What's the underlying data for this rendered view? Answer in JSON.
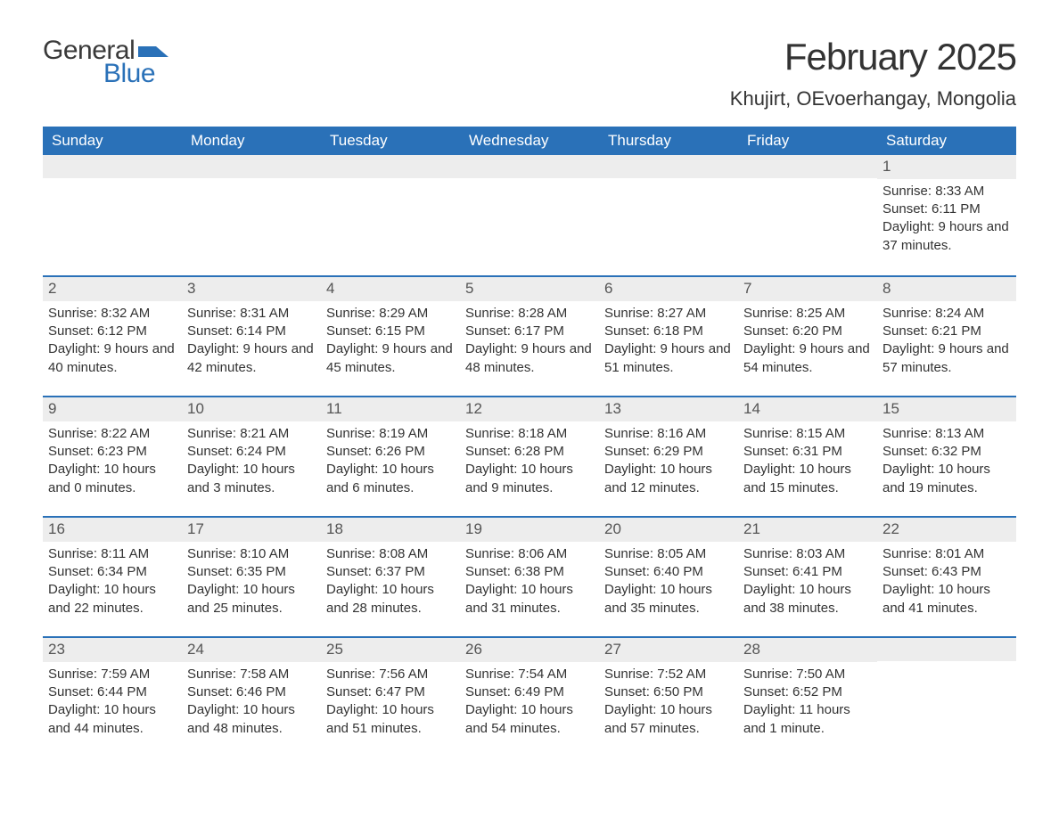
{
  "logo": {
    "wordA": "General",
    "wordB": "Blue"
  },
  "title": "February 2025",
  "location": "Khujirt, OEvoerhangay, Mongolia",
  "colors": {
    "header_bg": "#2a71b8",
    "header_fg": "#ffffff",
    "daynum_bg": "#ededed",
    "week_border": "#2a71b8",
    "page_bg": "#ffffff",
    "text": "#333333",
    "logo_dark": "#3a3a3a",
    "logo_blue": "#2a71b8"
  },
  "typography": {
    "title_fontsize": 42,
    "location_fontsize": 22,
    "weekday_fontsize": 17,
    "daynum_fontsize": 17,
    "body_fontsize": 15,
    "logo_fontsize": 30
  },
  "weekdays": [
    "Sunday",
    "Monday",
    "Tuesday",
    "Wednesday",
    "Thursday",
    "Friday",
    "Saturday"
  ],
  "labels": {
    "sunrise": "Sunrise: ",
    "sunset": "Sunset: ",
    "daylight": "Daylight: "
  },
  "weeks": [
    [
      null,
      null,
      null,
      null,
      null,
      null,
      {
        "day": "1",
        "sunrise": "8:33 AM",
        "sunset": "6:11 PM",
        "daylight": "9 hours and 37 minutes."
      }
    ],
    [
      {
        "day": "2",
        "sunrise": "8:32 AM",
        "sunset": "6:12 PM",
        "daylight": "9 hours and 40 minutes."
      },
      {
        "day": "3",
        "sunrise": "8:31 AM",
        "sunset": "6:14 PM",
        "daylight": "9 hours and 42 minutes."
      },
      {
        "day": "4",
        "sunrise": "8:29 AM",
        "sunset": "6:15 PM",
        "daylight": "9 hours and 45 minutes."
      },
      {
        "day": "5",
        "sunrise": "8:28 AM",
        "sunset": "6:17 PM",
        "daylight": "9 hours and 48 minutes."
      },
      {
        "day": "6",
        "sunrise": "8:27 AM",
        "sunset": "6:18 PM",
        "daylight": "9 hours and 51 minutes."
      },
      {
        "day": "7",
        "sunrise": "8:25 AM",
        "sunset": "6:20 PM",
        "daylight": "9 hours and 54 minutes."
      },
      {
        "day": "8",
        "sunrise": "8:24 AM",
        "sunset": "6:21 PM",
        "daylight": "9 hours and 57 minutes."
      }
    ],
    [
      {
        "day": "9",
        "sunrise": "8:22 AM",
        "sunset": "6:23 PM",
        "daylight": "10 hours and 0 minutes."
      },
      {
        "day": "10",
        "sunrise": "8:21 AM",
        "sunset": "6:24 PM",
        "daylight": "10 hours and 3 minutes."
      },
      {
        "day": "11",
        "sunrise": "8:19 AM",
        "sunset": "6:26 PM",
        "daylight": "10 hours and 6 minutes."
      },
      {
        "day": "12",
        "sunrise": "8:18 AM",
        "sunset": "6:28 PM",
        "daylight": "10 hours and 9 minutes."
      },
      {
        "day": "13",
        "sunrise": "8:16 AM",
        "sunset": "6:29 PM",
        "daylight": "10 hours and 12 minutes."
      },
      {
        "day": "14",
        "sunrise": "8:15 AM",
        "sunset": "6:31 PM",
        "daylight": "10 hours and 15 minutes."
      },
      {
        "day": "15",
        "sunrise": "8:13 AM",
        "sunset": "6:32 PM",
        "daylight": "10 hours and 19 minutes."
      }
    ],
    [
      {
        "day": "16",
        "sunrise": "8:11 AM",
        "sunset": "6:34 PM",
        "daylight": "10 hours and 22 minutes."
      },
      {
        "day": "17",
        "sunrise": "8:10 AM",
        "sunset": "6:35 PM",
        "daylight": "10 hours and 25 minutes."
      },
      {
        "day": "18",
        "sunrise": "8:08 AM",
        "sunset": "6:37 PM",
        "daylight": "10 hours and 28 minutes."
      },
      {
        "day": "19",
        "sunrise": "8:06 AM",
        "sunset": "6:38 PM",
        "daylight": "10 hours and 31 minutes."
      },
      {
        "day": "20",
        "sunrise": "8:05 AM",
        "sunset": "6:40 PM",
        "daylight": "10 hours and 35 minutes."
      },
      {
        "day": "21",
        "sunrise": "8:03 AM",
        "sunset": "6:41 PM",
        "daylight": "10 hours and 38 minutes."
      },
      {
        "day": "22",
        "sunrise": "8:01 AM",
        "sunset": "6:43 PM",
        "daylight": "10 hours and 41 minutes."
      }
    ],
    [
      {
        "day": "23",
        "sunrise": "7:59 AM",
        "sunset": "6:44 PM",
        "daylight": "10 hours and 44 minutes."
      },
      {
        "day": "24",
        "sunrise": "7:58 AM",
        "sunset": "6:46 PM",
        "daylight": "10 hours and 48 minutes."
      },
      {
        "day": "25",
        "sunrise": "7:56 AM",
        "sunset": "6:47 PM",
        "daylight": "10 hours and 51 minutes."
      },
      {
        "day": "26",
        "sunrise": "7:54 AM",
        "sunset": "6:49 PM",
        "daylight": "10 hours and 54 minutes."
      },
      {
        "day": "27",
        "sunrise": "7:52 AM",
        "sunset": "6:50 PM",
        "daylight": "10 hours and 57 minutes."
      },
      {
        "day": "28",
        "sunrise": "7:50 AM",
        "sunset": "6:52 PM",
        "daylight": "11 hours and 1 minute."
      },
      null
    ]
  ]
}
